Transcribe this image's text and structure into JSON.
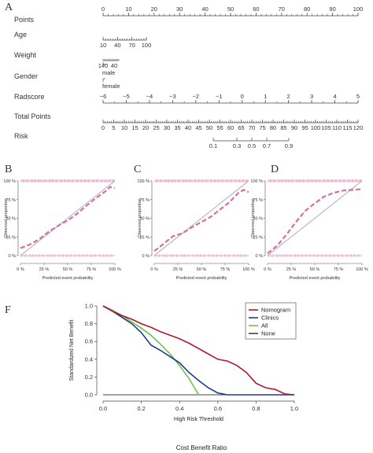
{
  "panel_letters": {
    "a": "A",
    "b": "B",
    "c": "C",
    "d": "D",
    "f": "F"
  },
  "footer_caption": "Cost Benefit Ratio",
  "chart_data": [
    {
      "type": "nomogram",
      "panel": "A",
      "rows": [
        {
          "key": "points",
          "label": "Points",
          "min": 0,
          "max": 100,
          "ticks": [
            0,
            10,
            20,
            30,
            40,
            50,
            60,
            70,
            80,
            90,
            100
          ]
        },
        {
          "key": "age",
          "label": "Age",
          "min": 10,
          "max": 100,
          "ticks": [
            10,
            40,
            70,
            100
          ]
        },
        {
          "key": "weight",
          "label": "Weight",
          "ticks": [
            140,
            40
          ]
        },
        {
          "key": "gender",
          "label": "Gender",
          "categories": [
            "male",
            "female"
          ]
        },
        {
          "key": "radscore",
          "label": "Radscore",
          "min": -6,
          "max": 5,
          "ticks": [
            -6,
            -5,
            -4,
            -3,
            -2,
            -1,
            0,
            1,
            2,
            3,
            4,
            5
          ]
        },
        {
          "key": "total",
          "label": "Total Points",
          "min": 0,
          "max": 120,
          "ticks": [
            0,
            5,
            10,
            15,
            20,
            25,
            30,
            35,
            40,
            45,
            50,
            55,
            60,
            65,
            70,
            75,
            80,
            85,
            90,
            95,
            100,
            105,
            110,
            115,
            120
          ]
        },
        {
          "key": "risk",
          "label": "Risk",
          "ticks": [
            0.1,
            0.3,
            0.5,
            0.7,
            0.9
          ]
        }
      ]
    },
    {
      "type": "calibration",
      "panel": "B",
      "xlabel": "Predicted event probability",
      "ylabel": "Observed proportion",
      "xticks": [
        "0 %",
        "25 %",
        "50 %",
        "75 %",
        "100 %"
      ],
      "yticks": [
        "0 %",
        "25 %",
        "50 %",
        "75 %",
        "100 %"
      ],
      "x": [
        0.0,
        0.1,
        0.2,
        0.3,
        0.4,
        0.5,
        0.6,
        0.7,
        0.8,
        0.9,
        0.95,
        1.0
      ],
      "y": [
        0.1,
        0.15,
        0.22,
        0.32,
        0.4,
        0.47,
        0.56,
        0.67,
        0.77,
        0.86,
        0.92,
        0.9
      ]
    },
    {
      "type": "calibration",
      "panel": "C",
      "xlabel": "Predicted event probability",
      "ylabel": "Observed proportion",
      "xticks": [
        "0 %",
        "25 %",
        "50 %",
        "75 %",
        "100 %"
      ],
      "yticks": [
        "0 %",
        "25 %",
        "50 %",
        "75 %",
        "100 %"
      ],
      "x": [
        0.0,
        0.1,
        0.2,
        0.3,
        0.4,
        0.5,
        0.6,
        0.7,
        0.8,
        0.9,
        0.95,
        1.0
      ],
      "y": [
        0.06,
        0.16,
        0.26,
        0.3,
        0.38,
        0.45,
        0.52,
        0.62,
        0.72,
        0.85,
        0.88,
        0.85
      ]
    },
    {
      "type": "calibration",
      "panel": "D",
      "xlabel": "Predicted event probability",
      "ylabel": "Observed proportion",
      "xticks": [
        "0 %",
        "25 %",
        "50 %",
        "75 %",
        "100 %"
      ],
      "yticks": [
        "0 %",
        "25 %",
        "50 %",
        "75 %",
        "100 %"
      ],
      "x": [
        0.0,
        0.1,
        0.2,
        0.3,
        0.4,
        0.5,
        0.6,
        0.7,
        0.8,
        0.9,
        1.0
      ],
      "y": [
        0.03,
        0.13,
        0.28,
        0.45,
        0.6,
        0.7,
        0.79,
        0.84,
        0.87,
        0.88,
        0.89
      ]
    },
    {
      "type": "line",
      "panel": "F",
      "xlabel": "High Risk Threshold",
      "ylabel": "Standardized Net Benefit",
      "xlim": [
        0,
        1
      ],
      "ylim": [
        0,
        1
      ],
      "xticks": [
        "0.0",
        "0.2",
        "0.4",
        "0.6",
        "0.8",
        "1.0"
      ],
      "yticks": [
        "0.0",
        "0.2",
        "0.4",
        "0.6",
        "0.8",
        "1.0"
      ],
      "legend_position": "top-right",
      "series": [
        {
          "name": "Nomogram",
          "color": "#b2182b",
          "x": [
            0.0,
            0.05,
            0.1,
            0.15,
            0.2,
            0.25,
            0.3,
            0.35,
            0.4,
            0.45,
            0.5,
            0.55,
            0.6,
            0.65,
            0.7,
            0.75,
            0.8,
            0.85,
            0.9,
            0.95,
            1.0
          ],
          "y": [
            1.0,
            0.94,
            0.89,
            0.85,
            0.8,
            0.76,
            0.71,
            0.67,
            0.63,
            0.58,
            0.52,
            0.46,
            0.4,
            0.38,
            0.33,
            0.25,
            0.13,
            0.08,
            0.06,
            0.01,
            0.0
          ]
        },
        {
          "name": "Clinics",
          "color": "#1f3c8f",
          "x": [
            0.0,
            0.05,
            0.1,
            0.15,
            0.2,
            0.25,
            0.3,
            0.35,
            0.4,
            0.45,
            0.5,
            0.55,
            0.6,
            0.65,
            0.7,
            0.75,
            0.8,
            1.0
          ],
          "y": [
            1.0,
            0.94,
            0.87,
            0.8,
            0.7,
            0.56,
            0.5,
            0.43,
            0.36,
            0.25,
            0.16,
            0.08,
            0.02,
            0.0,
            0.0,
            0.0,
            0.0,
            0.0
          ]
        },
        {
          "name": "All",
          "color": "#6cc24a",
          "x": [
            0.0,
            0.05,
            0.1,
            0.15,
            0.2,
            0.25,
            0.3,
            0.35,
            0.4,
            0.45,
            0.5
          ],
          "y": [
            1.0,
            0.95,
            0.89,
            0.82,
            0.75,
            0.67,
            0.57,
            0.46,
            0.33,
            0.18,
            0.0
          ]
        },
        {
          "name": "None",
          "color": "#444444",
          "x": [
            0.0,
            1.0
          ],
          "y": [
            0.0,
            0.0
          ]
        }
      ]
    }
  ]
}
